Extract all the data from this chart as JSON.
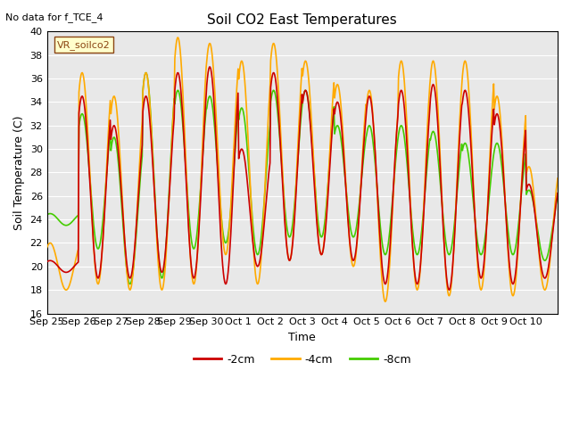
{
  "title": "Soil CO2 East Temperatures",
  "no_data_text": "No data for f_TCE_4",
  "legend_box_text": "VR_soilco2",
  "xlabel": "Time",
  "ylabel": "Soil Temperature (C)",
  "ylim": [
    16,
    40
  ],
  "yticks": [
    16,
    18,
    20,
    22,
    24,
    26,
    28,
    30,
    32,
    34,
    36,
    38,
    40
  ],
  "bg_color": "#e8e8e8",
  "fig_bg_color": "#ffffff",
  "line_colors": {
    "m2cm": "#cc0000",
    "m4cm": "#ffaa00",
    "m8cm": "#44cc00"
  },
  "legend_labels": [
    "-2cm",
    "-4cm",
    "-8cm"
  ],
  "x_tick_labels": [
    "Sep 25",
    "Sep 26",
    "Sep 27",
    "Sep 28",
    "Sep 29",
    "Sep 30",
    "Oct 1",
    "Oct 2",
    "Oct 3",
    "Oct 4",
    "Oct 5",
    "Oct 6",
    "Oct 7",
    "Oct 8",
    "Oct 9",
    "Oct 10"
  ],
  "points_per_day": 48,
  "day_mins_2cm": [
    19.5,
    19.0,
    19.0,
    19.5,
    19.0,
    18.5,
    20.0,
    20.5,
    21.0,
    20.5,
    18.5,
    18.5,
    18.0,
    19.0,
    18.5,
    19.0
  ],
  "day_maxs_2cm": [
    20.5,
    34.5,
    32.0,
    34.5,
    36.5,
    37.0,
    30.0,
    36.5,
    35.0,
    34.0,
    34.5,
    35.0,
    35.5,
    35.0,
    33.0,
    27.0
  ],
  "day_mins_4cm": [
    18.0,
    18.5,
    18.0,
    18.0,
    18.5,
    21.0,
    18.5,
    20.5,
    21.0,
    20.0,
    17.0,
    18.0,
    17.5,
    18.0,
    17.5,
    18.0
  ],
  "day_maxs_4cm": [
    22.0,
    36.5,
    34.5,
    36.5,
    39.5,
    39.0,
    37.5,
    39.0,
    37.5,
    35.5,
    35.0,
    37.5,
    37.5,
    37.5,
    34.5,
    28.5
  ],
  "day_mins_8cm": [
    23.5,
    21.5,
    18.5,
    19.0,
    21.5,
    22.0,
    21.0,
    22.5,
    22.5,
    22.5,
    21.0,
    21.0,
    21.0,
    21.0,
    21.0,
    20.5
  ],
  "day_maxs_8cm": [
    24.5,
    33.0,
    31.0,
    36.5,
    35.0,
    34.5,
    33.5,
    35.0,
    35.0,
    32.0,
    32.0,
    32.0,
    31.5,
    30.5,
    30.5,
    26.5
  ]
}
